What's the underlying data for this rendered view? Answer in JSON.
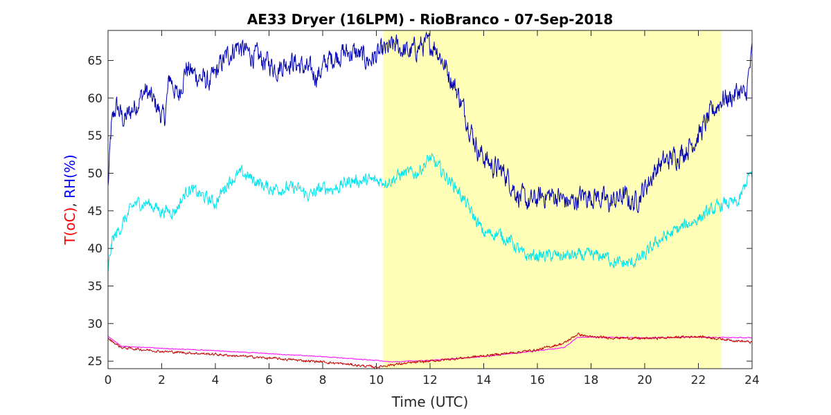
{
  "chart_data": {
    "type": "line",
    "title": "AE33 Dryer (16LPM)  - RioBranco - 07-Sep-2018",
    "xlabel": "Time (UTC)",
    "ylabel_parts": [
      {
        "text": "T(oC)",
        "color": "#ff0000"
      },
      {
        "text": ", ",
        "color": "#262626"
      },
      {
        "text": "RH(%)",
        "color": "#0000ff"
      }
    ],
    "xlim": [
      0,
      24
    ],
    "ylim": [
      24,
      69
    ],
    "x_ticks": [
      0,
      2,
      4,
      6,
      8,
      10,
      12,
      14,
      16,
      18,
      20,
      22,
      24
    ],
    "y_ticks": [
      25,
      30,
      35,
      40,
      45,
      50,
      55,
      60,
      65
    ],
    "grid": false,
    "daylight_band": {
      "x_start": 10.25,
      "x_end": 22.85,
      "color": "#ffffb8"
    },
    "series": [
      {
        "color": "#0000b4",
        "noise": 1.2,
        "points": [
          [
            0,
            48
          ],
          [
            0.12,
            56
          ],
          [
            0.3,
            59
          ],
          [
            0.6,
            57
          ],
          [
            1,
            59
          ],
          [
            1.4,
            61
          ],
          [
            1.8,
            59
          ],
          [
            2.1,
            57
          ],
          [
            2.3,
            63
          ],
          [
            2.6,
            60
          ],
          [
            2.9,
            64
          ],
          [
            3.3,
            63
          ],
          [
            3.8,
            62
          ],
          [
            4.3,
            65
          ],
          [
            4.8,
            67
          ],
          [
            5.2,
            66
          ],
          [
            5.8,
            65
          ],
          [
            6.3,
            64
          ],
          [
            6.8,
            65
          ],
          [
            7.3,
            64
          ],
          [
            7.8,
            63
          ],
          [
            8.2,
            65
          ],
          [
            8.7,
            66
          ],
          [
            9.2,
            66
          ],
          [
            9.7,
            65
          ],
          [
            10.2,
            66
          ],
          [
            10.7,
            67
          ],
          [
            11.2,
            66
          ],
          [
            11.7,
            67
          ],
          [
            12.2,
            67
          ],
          [
            12.6,
            64
          ],
          [
            13,
            61
          ],
          [
            13.4,
            57
          ],
          [
            13.8,
            53
          ],
          [
            14.3,
            51
          ],
          [
            14.8,
            50
          ],
          [
            15.3,
            47
          ],
          [
            15.7,
            46
          ],
          [
            16.2,
            47
          ],
          [
            16.7,
            47
          ],
          [
            17.2,
            46
          ],
          [
            17.7,
            47
          ],
          [
            18.2,
            47
          ],
          [
            18.7,
            46
          ],
          [
            19.2,
            47
          ],
          [
            19.6,
            46
          ],
          [
            20,
            48
          ],
          [
            20.5,
            51
          ],
          [
            21,
            52
          ],
          [
            21.5,
            53
          ],
          [
            22,
            55
          ],
          [
            22.5,
            58
          ],
          [
            22.9,
            60
          ],
          [
            23.2,
            60
          ],
          [
            23.5,
            61
          ],
          [
            23.75,
            60
          ],
          [
            24,
            66
          ]
        ]
      },
      {
        "color": "#00e5ee",
        "noise": 0.7,
        "points": [
          [
            0,
            37
          ],
          [
            0.15,
            41
          ],
          [
            0.5,
            43
          ],
          [
            1,
            46
          ],
          [
            1.5,
            46
          ],
          [
            2,
            45
          ],
          [
            2.5,
            45
          ],
          [
            3,
            48
          ],
          [
            3.5,
            47
          ],
          [
            4,
            46
          ],
          [
            4.5,
            49
          ],
          [
            5,
            50
          ],
          [
            5.5,
            49
          ],
          [
            6,
            48
          ],
          [
            6.5,
            48
          ],
          [
            7,
            48
          ],
          [
            7.5,
            47
          ],
          [
            8,
            48
          ],
          [
            8.5,
            48
          ],
          [
            9,
            49
          ],
          [
            9.5,
            49
          ],
          [
            10,
            49
          ],
          [
            10.5,
            49
          ],
          [
            11,
            50
          ],
          [
            11.5,
            50
          ],
          [
            12,
            52
          ],
          [
            12.5,
            50
          ],
          [
            13,
            48
          ],
          [
            13.5,
            45
          ],
          [
            14,
            42
          ],
          [
            14.5,
            42
          ],
          [
            15,
            41
          ],
          [
            15.5,
            39
          ],
          [
            16,
            39
          ],
          [
            16.5,
            39
          ],
          [
            17,
            39
          ],
          [
            17.5,
            39
          ],
          [
            18,
            39
          ],
          [
            18.5,
            39
          ],
          [
            19,
            38
          ],
          [
            19.5,
            38
          ],
          [
            20,
            39
          ],
          [
            20.5,
            41
          ],
          [
            21,
            42
          ],
          [
            21.5,
            43
          ],
          [
            22,
            44
          ],
          [
            22.5,
            45
          ],
          [
            23,
            46
          ],
          [
            23.5,
            46
          ],
          [
            23.9,
            50
          ],
          [
            24,
            49
          ]
        ]
      },
      {
        "color": "#ff00ff",
        "noise": 0.04,
        "points": [
          [
            0,
            28.3
          ],
          [
            0.5,
            27
          ],
          [
            2,
            26.7
          ],
          [
            4,
            26.4
          ],
          [
            6,
            26
          ],
          [
            8,
            25.6
          ],
          [
            10,
            25.1
          ],
          [
            10.5,
            24.9
          ],
          [
            12,
            25.1
          ],
          [
            14,
            25.6
          ],
          [
            16,
            26.4
          ],
          [
            17,
            26.8
          ],
          [
            17.5,
            28.2
          ],
          [
            18,
            28.2
          ],
          [
            20,
            28.1
          ],
          [
            22,
            28.2
          ],
          [
            24,
            28.1
          ]
        ]
      },
      {
        "color": "#c40000",
        "noise": 0.13,
        "points": [
          [
            0,
            28
          ],
          [
            0.5,
            26.8
          ],
          [
            2,
            26.3
          ],
          [
            4,
            25.9
          ],
          [
            6,
            25.4
          ],
          [
            8,
            24.9
          ],
          [
            10,
            24.2
          ],
          [
            10.5,
            24.5
          ],
          [
            12,
            25
          ],
          [
            14,
            25.7
          ],
          [
            16,
            26.5
          ],
          [
            17,
            27.4
          ],
          [
            17.5,
            28.6
          ],
          [
            18,
            28.2
          ],
          [
            20,
            28
          ],
          [
            22,
            28.3
          ],
          [
            23,
            27.9
          ],
          [
            24,
            27.5
          ]
        ]
      }
    ]
  }
}
